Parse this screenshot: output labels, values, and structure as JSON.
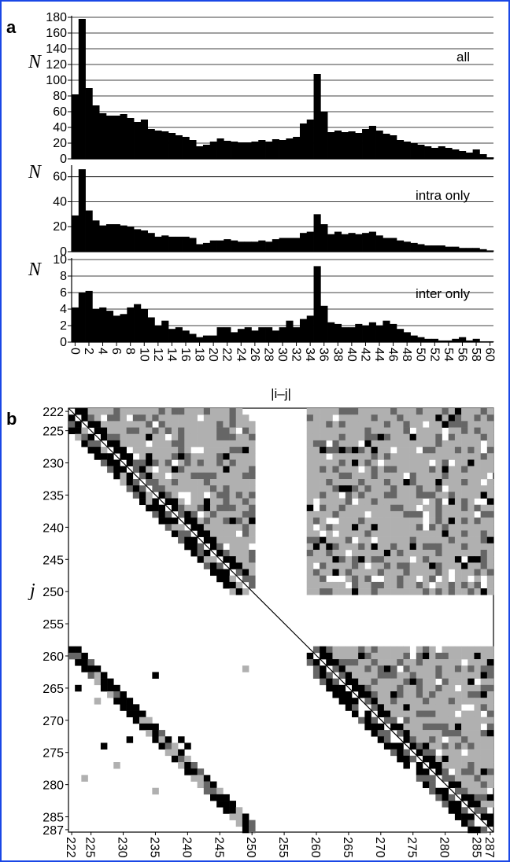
{
  "chart_data": [
    {
      "panel": "a",
      "type": "bar",
      "ylabel": "N",
      "legend": "all",
      "ylim": [
        0,
        180
      ],
      "yticks": [
        0,
        20,
        40,
        60,
        80,
        100,
        120,
        140,
        160,
        180
      ],
      "x": [
        0,
        1,
        2,
        3,
        4,
        5,
        6,
        7,
        8,
        9,
        10,
        11,
        12,
        13,
        14,
        15,
        16,
        17,
        18,
        19,
        20,
        21,
        22,
        23,
        24,
        25,
        26,
        27,
        28,
        29,
        30,
        31,
        32,
        33,
        34,
        35,
        36,
        37,
        38,
        39,
        40,
        41,
        42,
        43,
        44,
        45,
        46,
        47,
        48,
        49,
        50,
        51,
        52,
        53,
        54,
        55,
        56,
        57,
        58,
        59,
        60
      ],
      "values": [
        82,
        178,
        90,
        68,
        58,
        55,
        55,
        57,
        52,
        47,
        50,
        38,
        36,
        35,
        33,
        30,
        28,
        24,
        16,
        18,
        22,
        26,
        23,
        22,
        21,
        21,
        22,
        24,
        22,
        25,
        24,
        26,
        28,
        45,
        50,
        108,
        60,
        34,
        36,
        34,
        35,
        33,
        38,
        42,
        36,
        32,
        30,
        24,
        22,
        20,
        18,
        16,
        14,
        16,
        14,
        12,
        10,
        8,
        12,
        6,
        2
      ]
    },
    {
      "panel": "a",
      "type": "bar",
      "ylabel": "N",
      "legend": "intra only",
      "ylim": [
        0,
        68
      ],
      "yticks": [
        0,
        20,
        40,
        60
      ],
      "x": [
        0,
        1,
        2,
        3,
        4,
        5,
        6,
        7,
        8,
        9,
        10,
        11,
        12,
        13,
        14,
        15,
        16,
        17,
        18,
        19,
        20,
        21,
        22,
        23,
        24,
        25,
        26,
        27,
        28,
        29,
        30,
        31,
        32,
        33,
        34,
        35,
        36,
        37,
        38,
        39,
        40,
        41,
        42,
        43,
        44,
        45,
        46,
        47,
        48,
        49,
        50,
        51,
        52,
        53,
        54,
        55,
        56,
        57,
        58,
        59,
        60
      ],
      "values": [
        29,
        66,
        33,
        25,
        21,
        22,
        22,
        21,
        20,
        18,
        17,
        15,
        12,
        13,
        12,
        12,
        12,
        11,
        6,
        7,
        9,
        9,
        10,
        9,
        8,
        8,
        8,
        9,
        8,
        10,
        11,
        11,
        11,
        15,
        16,
        30,
        22,
        14,
        16,
        14,
        15,
        14,
        15,
        16,
        13,
        11,
        11,
        9,
        8,
        7,
        6,
        5,
        5,
        5,
        4,
        4,
        3,
        3,
        3,
        2,
        1
      ]
    },
    {
      "panel": "a",
      "type": "bar",
      "ylabel": "N",
      "legend": "inter only",
      "ylim": [
        0,
        10
      ],
      "yticks": [
        0,
        2,
        4,
        6,
        8,
        10
      ],
      "xlabel": "|i–j|",
      "xticks": [
        0,
        2,
        4,
        6,
        8,
        10,
        12,
        14,
        16,
        18,
        20,
        22,
        24,
        26,
        28,
        30,
        32,
        34,
        36,
        38,
        40,
        42,
        44,
        46,
        48,
        50,
        52,
        54,
        56,
        58,
        60
      ],
      "x": [
        0,
        1,
        2,
        3,
        4,
        5,
        6,
        7,
        8,
        9,
        10,
        11,
        12,
        13,
        14,
        15,
        16,
        17,
        18,
        19,
        20,
        21,
        22,
        23,
        24,
        25,
        26,
        27,
        28,
        29,
        30,
        31,
        32,
        33,
        34,
        35,
        36,
        37,
        38,
        39,
        40,
        41,
        42,
        43,
        44,
        45,
        46,
        47,
        48,
        49,
        50,
        51,
        52,
        53,
        54,
        55,
        56,
        57,
        58,
        59,
        60
      ],
      "values": [
        4.2,
        6.0,
        6.2,
        4.0,
        4.2,
        3.8,
        3.2,
        3.4,
        4.2,
        4.6,
        4.0,
        3.0,
        2.0,
        2.6,
        1.6,
        1.8,
        1.4,
        1.0,
        0.6,
        0.8,
        0.8,
        1.8,
        1.8,
        1.2,
        1.6,
        1.8,
        1.4,
        1.8,
        1.8,
        1.4,
        1.8,
        2.6,
        1.8,
        2.8,
        3.2,
        9.2,
        4.4,
        2.4,
        2.2,
        1.8,
        1.8,
        2.2,
        2.0,
        2.4,
        2.0,
        2.6,
        2.2,
        1.6,
        1.2,
        0.8,
        0.6,
        0.4,
        0.4,
        0.2,
        0.2,
        0.4,
        0.6,
        0.2,
        0.4,
        0.1,
        0.1
      ]
    },
    {
      "panel": "b",
      "type": "heatmap",
      "ylabel": "j",
      "range": [
        222,
        287
      ],
      "ticks": [
        222,
        225,
        230,
        235,
        240,
        245,
        250,
        255,
        260,
        265,
        270,
        275,
        280,
        285,
        287
      ],
      "colors": {
        "strong": "#000000",
        "medium": "#666666",
        "weak": "#b0b0b0"
      }
    }
  ],
  "labels": {
    "panel_a": "a",
    "panel_b": "b",
    "y_a": "N",
    "y_b": "j",
    "x_a": "|i–j|",
    "legend1": "all",
    "legend2": "intra only",
    "legend3": "inter only"
  }
}
